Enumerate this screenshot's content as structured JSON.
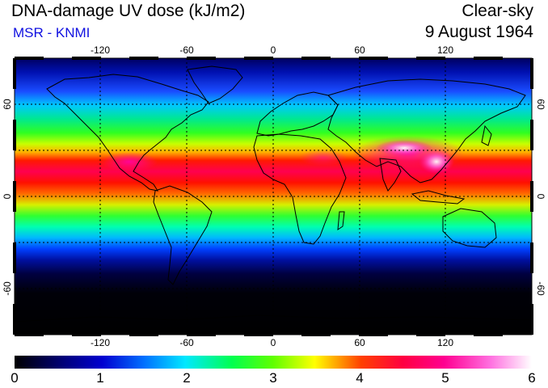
{
  "header": {
    "title": "DNA-damage UV dose (kJ/m2)",
    "credit": "MSR - KNMI",
    "mode": "Clear-sky",
    "date": "9 August 1964"
  },
  "map": {
    "projection": "equirectangular",
    "lon_range": [
      -180,
      180
    ],
    "lat_range": [
      -90,
      90
    ],
    "lon_ticks": [
      "-120",
      "-60",
      "0",
      "60",
      "120"
    ],
    "lat_ticks": [
      "60",
      "0",
      "-60"
    ],
    "gridlines": "dotted"
  },
  "colorbar": {
    "labels": [
      "0",
      "1",
      "2",
      "3",
      "4",
      "5",
      "6"
    ],
    "range": [
      0,
      6
    ],
    "colors": [
      "#000000",
      "#0000c8",
      "#00e0ff",
      "#00ff30",
      "#ffff00",
      "#ff0000",
      "#ff00a0",
      "#ffffff"
    ]
  }
}
